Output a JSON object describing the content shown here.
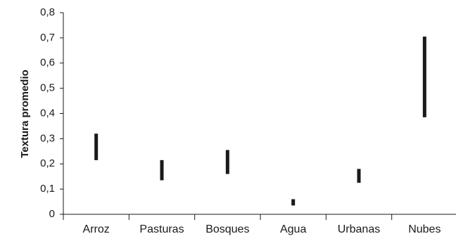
{
  "chart_data": {
    "type": "bar",
    "subtype": "floating-range",
    "title": "",
    "xlabel": "",
    "ylabel": "Textura promedio",
    "ylim": [
      0,
      0.8
    ],
    "yticks": [
      0,
      0.1,
      0.2,
      0.3,
      0.4,
      0.5,
      0.6,
      0.7,
      0.8
    ],
    "ytick_labels": [
      "0",
      "0,1",
      "0,2",
      "0,3",
      "0,4",
      "0,5",
      "0,6",
      "0,7",
      "0,8"
    ],
    "categories": [
      "Arroz",
      "Pasturas",
      "Bosques",
      "Agua",
      "Urbanas",
      "Nubes"
    ],
    "ranges": [
      {
        "low": 0.215,
        "high": 0.32
      },
      {
        "low": 0.135,
        "high": 0.215
      },
      {
        "low": 0.16,
        "high": 0.255
      },
      {
        "low": 0.035,
        "high": 0.06
      },
      {
        "low": 0.125,
        "high": 0.18
      },
      {
        "low": 0.385,
        "high": 0.705
      }
    ],
    "grid": false,
    "legend": "none",
    "colors": {
      "bar": "#1a1a1a",
      "axis": "#1a1a1a"
    }
  }
}
